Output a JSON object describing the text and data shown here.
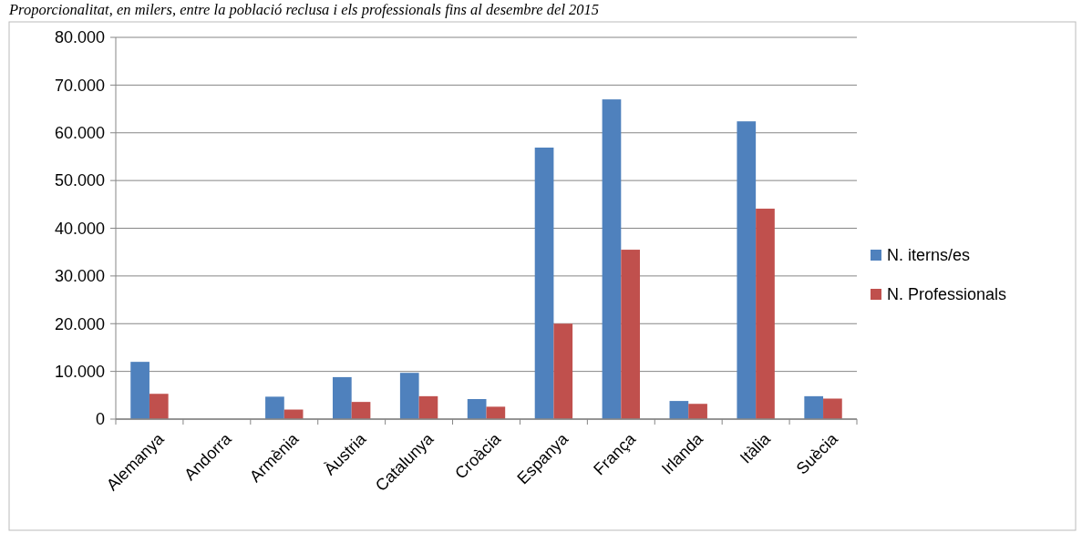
{
  "chart_data": {
    "type": "bar",
    "title": "Proporcionalitat, en milers, entre la població reclusa i els professionals fins al desembre del 2015",
    "categories": [
      "Alemanya",
      "Andorra",
      "Armènia",
      "Àustria",
      "Catalunya",
      "Croàcia",
      "Espanya",
      "França",
      "Irlanda",
      "Itàlia",
      "Suècia"
    ],
    "series": [
      {
        "name": "N. iterns/es",
        "color": "#4f81bd",
        "values": [
          12000,
          0,
          4700,
          8800,
          9700,
          4200,
          56900,
          67000,
          3800,
          62400,
          4800
        ]
      },
      {
        "name": "N. Professionals",
        "color": "#c0504d",
        "values": [
          5300,
          0,
          2000,
          3600,
          4800,
          2600,
          20000,
          35500,
          3200,
          44100,
          4300
        ]
      }
    ],
    "ylim": [
      0,
      80000
    ],
    "yticks": [
      0,
      {
        "value": 10000,
        "label": "10.000"
      },
      {
        "value": 20000,
        "label": "20.000"
      },
      {
        "value": 30000,
        "label": "30.000"
      },
      {
        "value": 40000,
        "label": "40.000"
      },
      {
        "value": 50000,
        "label": "50.000"
      },
      {
        "value": 60000,
        "label": "60.000"
      },
      {
        "value": 70000,
        "label": "70.000"
      },
      {
        "value": 80000,
        "label": "80.000"
      }
    ],
    "grid": "y",
    "legend": "right"
  }
}
